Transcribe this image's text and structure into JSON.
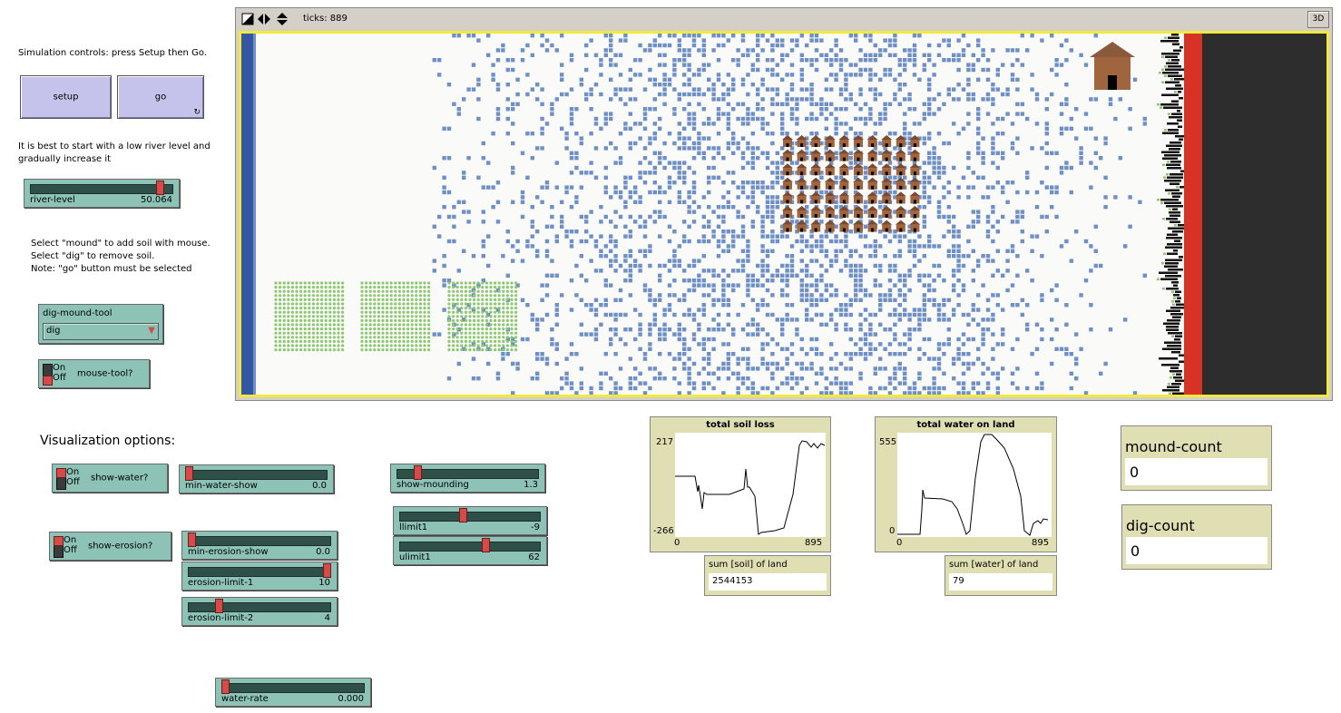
{
  "notes": {
    "intro": "Simulation controls: press Setup then Go.",
    "river_tip": "It is best to start with a low river level and gradually increase it",
    "mouse_tip_1": "Select \"mound\" to add soil with mouse.",
    "mouse_tip_2": "Select \"dig\" to remove soil.",
    "mouse_tip_3": "Note: \"go\" button must be selected",
    "vis_header": "Visualization options:"
  },
  "buttons": {
    "setup": "setup",
    "go": "go"
  },
  "sliders": {
    "river_level": {
      "label": "river-level",
      "value": "50.064",
      "fraction": 0.93
    },
    "min_water_show": {
      "label": "min-water-show",
      "value": "0.0",
      "fraction": 0.0
    },
    "show_mounding": {
      "label": "show-mounding",
      "value": "1.3",
      "fraction": 0.13
    },
    "llimit1": {
      "label": "llimit1",
      "value": "-9",
      "fraction": 0.45
    },
    "ulimit1": {
      "label": "ulimit1",
      "value": "62",
      "fraction": 0.62
    },
    "min_erosion_show": {
      "label": "min-erosion-show",
      "value": "0.0",
      "fraction": 0.0
    },
    "erosion_limit_1": {
      "label": "erosion-limit-1",
      "value": "10",
      "fraction": 1.0
    },
    "erosion_limit_2": {
      "label": "erosion-limit-2",
      "value": "4",
      "fraction": 0.2
    },
    "water_rate": {
      "label": "water-rate",
      "value": "0.000",
      "fraction": 0.0
    }
  },
  "chooser": {
    "label": "dig-mound-tool",
    "value": "dig"
  },
  "switches": {
    "mouse_tool": {
      "label": "mouse-tool?",
      "on": "On",
      "off": "Off"
    },
    "show_water": {
      "label": "show-water?",
      "on": "On",
      "off": "Off"
    },
    "show_erosion": {
      "label": "show-erosion?",
      "on": "On",
      "off": "Off"
    }
  },
  "view": {
    "ticks_label": "ticks: 889",
    "btn_3d": "3D"
  },
  "plots": {
    "soil": {
      "title": "total soil loss",
      "ymax": "217",
      "ymin": "-266",
      "xmin": "0",
      "xmax": "895"
    },
    "water": {
      "title": "total water on land",
      "ymax": "555",
      "ymin": "0",
      "xmin": "0",
      "xmax": "895"
    }
  },
  "monitors": {
    "sum_soil": {
      "label": "sum [soil] of land",
      "value": "2544153"
    },
    "sum_water": {
      "label": "sum [water] of land",
      "value": "79"
    },
    "mound_count": {
      "label": "mound-count",
      "value": "0"
    },
    "dig_count": {
      "label": "dig-count",
      "value": "0"
    }
  },
  "colors": {
    "button": "#c5c3eb",
    "widget": "#8dc3b6",
    "monitor": "#e0dfb3",
    "knob": "#d74a4a",
    "water": "#6f8fc7",
    "river": "#3457a4",
    "lava": "#d63324",
    "border": "#f2ea3a"
  }
}
